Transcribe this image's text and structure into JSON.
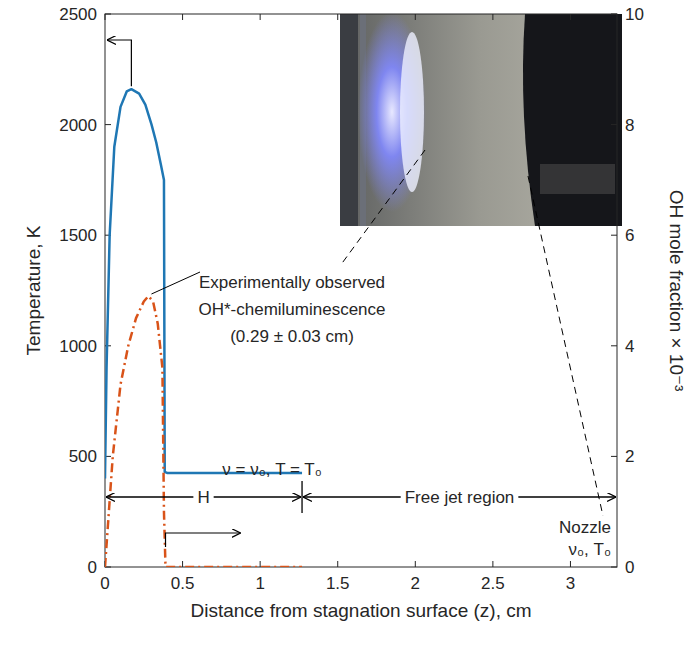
{
  "chart_data": {
    "type": "line",
    "x_label": "Distance from stagnation surface (z), cm",
    "y_label": "Temperature, K",
    "y2_label": "OH mole fraction × 10⁻³",
    "xlim": [
      0,
      3.3
    ],
    "xticks": [
      0,
      0.5,
      1,
      1.5,
      2,
      2.5,
      3
    ],
    "ylim": [
      0,
      2500
    ],
    "yticks": [
      0,
      500,
      1000,
      1500,
      2000,
      2500
    ],
    "y2lim": [
      0,
      10
    ],
    "y2ticks": [
      0,
      2,
      4,
      6,
      8,
      10
    ],
    "grid": false,
    "series": [
      {
        "color": "#1f77b4",
        "line_style": "solid",
        "x": [
          0,
          0.01,
          0.03,
          0.06,
          0.1,
          0.14,
          0.17,
          0.22,
          0.26,
          0.3,
          0.33,
          0.36,
          0.38,
          0.385,
          0.4,
          1.27
        ],
        "values": [
          400,
          900,
          1500,
          1900,
          2080,
          2150,
          2160,
          2140,
          2090,
          2000,
          1920,
          1820,
          1750,
          430,
          425,
          425
        ]
      },
      {
        "color": "#d95319",
        "line_style": "dashdot",
        "axis": "y2",
        "x": [
          0,
          0.02,
          0.05,
          0.1,
          0.15,
          0.2,
          0.25,
          0.28,
          0.31,
          0.34,
          0.37,
          0.38,
          0.39,
          1.27
        ],
        "values": [
          0,
          0.8,
          2.0,
          3.3,
          4.0,
          4.5,
          4.8,
          4.9,
          4.8,
          4.4,
          3.6,
          1.0,
          0,
          0
        ]
      }
    ],
    "annotations": [
      "Experimentally observed",
      "OH*-chemiluminescence",
      "(0.29 ± 0.03 cm)"
    ],
    "boundary_label": "ν = ν₀, T = T₀",
    "nozzle_labels": [
      "Nozzle",
      "ν₀, T₀"
    ],
    "regions": [
      {
        "label": "H",
        "x": [
          0,
          1.27
        ]
      },
      {
        "label": "Free jet region",
        "x": [
          1.27,
          3.3
        ]
      }
    ]
  }
}
